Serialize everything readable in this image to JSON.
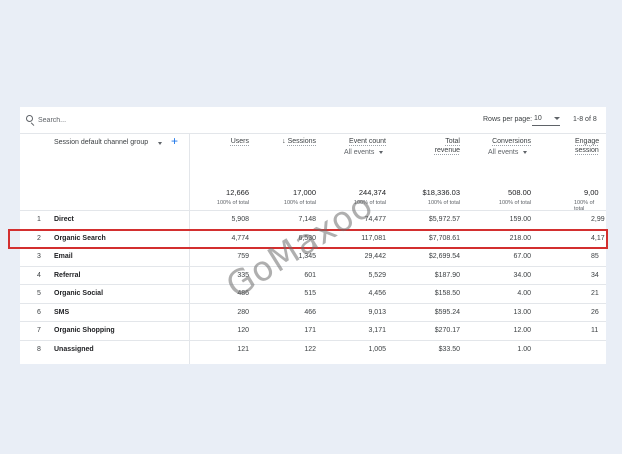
{
  "toolbar": {
    "search_placeholder": "Search...",
    "rows_per_page_label": "Rows per page:",
    "rows_per_page_value": "10",
    "range_text": "1-8 of 8"
  },
  "header": {
    "dimension_label": "Session default channel group",
    "metrics": [
      {
        "label": "Users",
        "sub": ""
      },
      {
        "label": "Sessions",
        "sub": "",
        "arrow": "↓"
      },
      {
        "label": "Event count",
        "sub": "All events"
      },
      {
        "label": "Total revenue",
        "line1": "Total",
        "line2": "revenue",
        "sub": ""
      },
      {
        "label": "Conversions",
        "sub": "All events"
      },
      {
        "label": "Engagement sessions",
        "line1": "Engage",
        "line2": "session",
        "sub": ""
      }
    ]
  },
  "totals": {
    "values": [
      "12,666",
      "17,000",
      "244,374",
      "$18,336.03",
      "508.00",
      "9,00"
    ],
    "sub": "100% of total"
  },
  "rows": [
    {
      "idx": "1",
      "name": "Direct",
      "values": [
        "5,908",
        "7,148",
        "74,477",
        "$5,972.57",
        "159.00",
        "2,99"
      ]
    },
    {
      "idx": "2",
      "name": "Organic Search",
      "values": [
        "4,774",
        "6,530",
        "117,081",
        "$7,708.61",
        "218.00",
        "4,17"
      ]
    },
    {
      "idx": "3",
      "name": "Email",
      "values": [
        "759",
        "1,345",
        "29,442",
        "$2,699.54",
        "67.00",
        "85"
      ]
    },
    {
      "idx": "4",
      "name": "Referral",
      "values": [
        "335",
        "601",
        "5,529",
        "$187.90",
        "34.00",
        "34"
      ]
    },
    {
      "idx": "5",
      "name": "Organic Social",
      "values": [
        "486",
        "515",
        "4,456",
        "$158.50",
        "4.00",
        "21"
      ]
    },
    {
      "idx": "6",
      "name": "SMS",
      "values": [
        "280",
        "466",
        "9,013",
        "$595.24",
        "13.00",
        "26"
      ]
    },
    {
      "idx": "7",
      "name": "Organic Shopping",
      "values": [
        "120",
        "171",
        "3,171",
        "$270.17",
        "12.00",
        "11"
      ]
    },
    {
      "idx": "8",
      "name": "Unassigned",
      "values": [
        "121",
        "122",
        "1,005",
        "$33.50",
        "1.00",
        ""
      ]
    }
  ],
  "watermark": "GoMaxoo",
  "colors": {
    "highlight": "#d32f2f",
    "accent": "#1a73e8"
  }
}
